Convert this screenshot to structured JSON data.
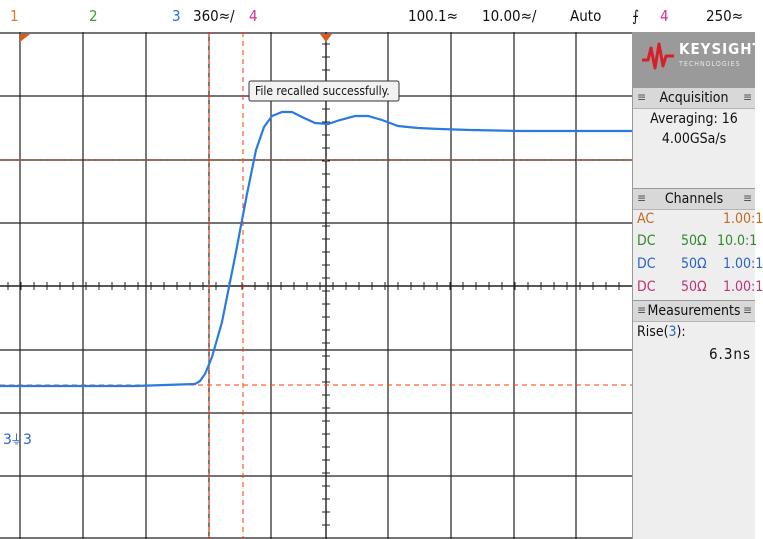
{
  "top_bar": {
    "ch1_num": "1",
    "ch2_num": "2",
    "ch3_num": "3",
    "ch3_scale": "360≈/",
    "ch4_num": "4",
    "trigger_delay": "100.1≈",
    "timebase": "10.00≈/",
    "trigger_mode": "Auto",
    "trigger_symbol": "⨍",
    "trigger_source": "4",
    "trigger_level": "250≈"
  },
  "message_box": {
    "text": "File recalled successfully."
  },
  "ground_marker": {
    "label": "3"
  },
  "sidebar": {
    "logo": {
      "brand": "KEYSIGHT",
      "sub": "TECHNOLOGIES"
    },
    "acquisition": {
      "title": "Acquisition",
      "mode": "Averaging: 16",
      "rate": "4.00GSa/s"
    },
    "channels": {
      "title": "Channels",
      "rows": [
        {
          "coupling": "AC",
          "impedance": "",
          "scale": "1.00:1",
          "color": "#c46a1f"
        },
        {
          "coupling": "DC",
          "impedance": "50Ω",
          "scale": "10.0:1",
          "color": "#2f8a2f"
        },
        {
          "coupling": "DC",
          "impedance": "50Ω",
          "scale": "1.00:1",
          "color": "#2a62c8"
        },
        {
          "coupling": "DC",
          "impedance": "50Ω",
          "scale": "1.00:1",
          "color": "#c2307a"
        }
      ]
    },
    "measurements": {
      "title": "Measurements",
      "label_prefix": "Rise(",
      "label_channel": "3",
      "label_suffix": "):",
      "value": "6.3ns"
    }
  },
  "colors": {
    "ch1": "#e07a26",
    "ch2": "#35a035",
    "ch3": "#2a6fd6",
    "ch4": "#d8308a",
    "waveform": "#2a7be0",
    "trigger_line": "#a0522d",
    "cursor": "#ff3b00",
    "grid": "#202020"
  }
}
